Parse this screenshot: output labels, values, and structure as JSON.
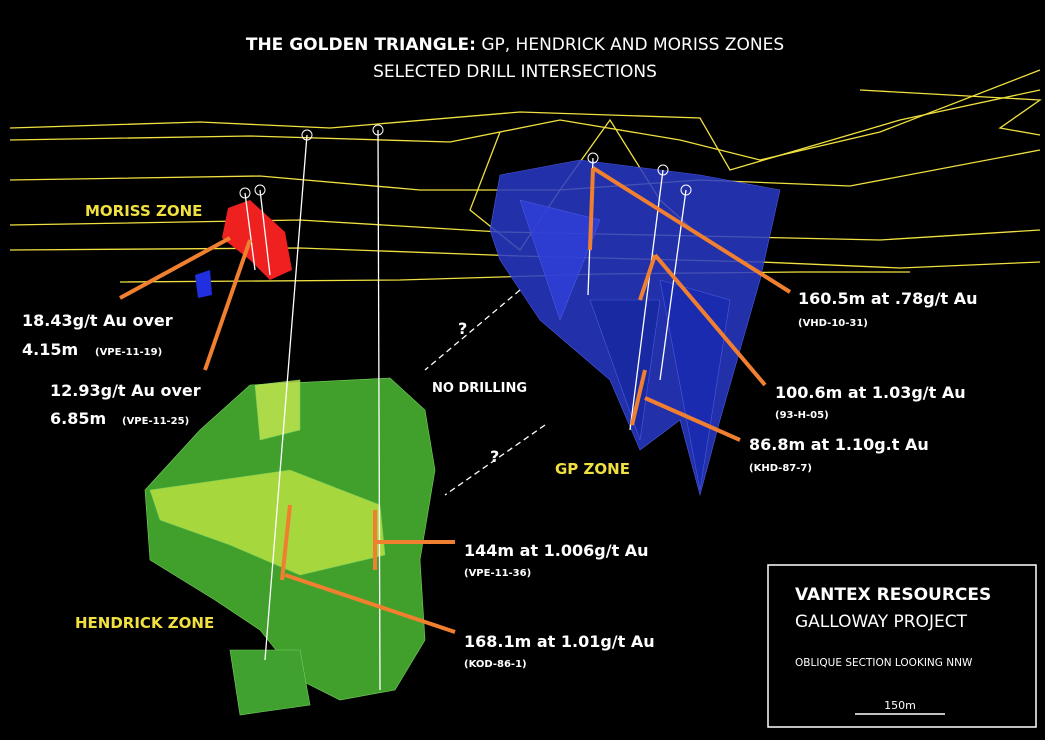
{
  "title": {
    "bold": "THE GOLDEN TRIANGLE:",
    "rest": " GP, HENDRICK AND MORISS ZONES"
  },
  "subtitle": "SELECTED DRILL INTERSECTIONS",
  "zones": [
    "MORISS ZONE",
    "GP ZONE",
    "HENDRICK ZONE"
  ],
  "annotations": {
    "no_drilling": "NO DRILLING",
    "question_marks": [
      "?",
      "?"
    ]
  },
  "intersections": [
    {
      "lines": [
        "18.43g/t Au over",
        "4.15m"
      ],
      "hole": "(VPE-11-19)"
    },
    {
      "lines": [
        "12.93g/t Au over",
        "6.85m"
      ],
      "hole": "(VPE-11-25)"
    },
    {
      "lines": [
        "160.5m at .78g/t Au"
      ],
      "hole": "(VHD-10-31)"
    },
    {
      "lines": [
        "100.6m at 1.03g/t Au"
      ],
      "hole": "(93-H-05)"
    },
    {
      "lines": [
        "86.8m at 1.10g.t Au"
      ],
      "hole": "(KHD-87-7)"
    },
    {
      "lines": [
        "144m at 1.006g/t Au"
      ],
      "hole": "(VPE-11-36)"
    },
    {
      "lines": [
        "168.1m at 1.01g/t Au"
      ],
      "hole": "(KOD-86-1)"
    }
  ],
  "legend_box": {
    "company": "VANTEX RESOURCES",
    "project": "GALLOWAY PROJECT",
    "section": "OBLIQUE SECTION LOOKING NNW",
    "scale": "150m"
  }
}
